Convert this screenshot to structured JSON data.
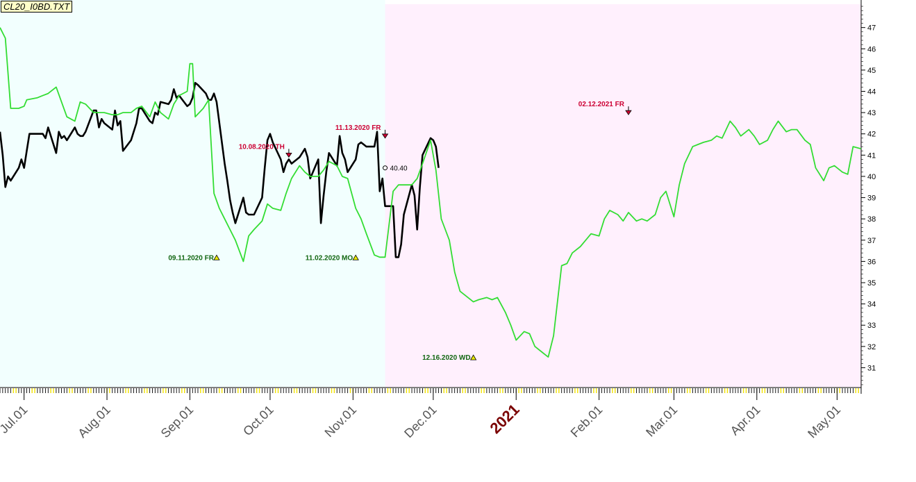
{
  "file_label": "CL20_I0BD.TXT",
  "colors": {
    "past_bg": "#f2fffe",
    "future_bg": "#fff0fd",
    "actual_line": "#000000",
    "forecast_line": "#33dd33",
    "high_marker": "#cc0033",
    "low_marker": "#116611",
    "year_label": "#7a0000"
  },
  "chart_data": {
    "type": "line",
    "x_axis": {
      "ticks": [
        "Jul.01",
        "Aug.01",
        "Sep.01",
        "Oct.01",
        "Nov.01",
        "Dec.01",
        "2021",
        "Feb.01",
        "Mar.01",
        "Apr.01",
        "May.01"
      ],
      "tick_dates": [
        "2020-07-01",
        "2020-08-01",
        "2020-09-01",
        "2020-10-01",
        "2020-11-01",
        "2020-12-01",
        "2021-01-01",
        "2021-02-01",
        "2021-03-01",
        "2021-04-01",
        "2021-05-01"
      ],
      "year_tick": "2021",
      "range": [
        "2020-06-22",
        "2021-05-10"
      ]
    },
    "y_axis": {
      "position": "right",
      "ticks": [
        31,
        32,
        33,
        34,
        35,
        36,
        37,
        38,
        39,
        40,
        41,
        42,
        43,
        44,
        45,
        46,
        47
      ],
      "range": [
        30.1,
        48.1
      ]
    },
    "split_date": "2020-11-13",
    "series": [
      {
        "key": "actual",
        "points": [
          [
            "2020-06-22",
            42.1
          ],
          [
            "2020-06-23",
            41.0
          ],
          [
            "2020-06-24",
            39.5
          ],
          [
            "2020-06-25",
            40.0
          ],
          [
            "2020-06-26",
            39.8
          ],
          [
            "2020-06-29",
            40.4
          ],
          [
            "2020-06-30",
            40.8
          ],
          [
            "2020-07-01",
            40.4
          ],
          [
            "2020-07-02",
            41.2
          ],
          [
            "2020-07-03",
            42.0
          ],
          [
            "2020-07-06",
            42.0
          ],
          [
            "2020-07-07",
            42.0
          ],
          [
            "2020-07-08",
            42.0
          ],
          [
            "2020-07-09",
            41.8
          ],
          [
            "2020-07-10",
            42.3
          ],
          [
            "2020-07-13",
            41.1
          ],
          [
            "2020-07-14",
            42.1
          ],
          [
            "2020-07-15",
            41.8
          ],
          [
            "2020-07-16",
            41.9
          ],
          [
            "2020-07-17",
            41.7
          ],
          [
            "2020-07-20",
            42.3
          ],
          [
            "2020-07-21",
            42.0
          ],
          [
            "2020-07-22",
            41.9
          ],
          [
            "2020-07-23",
            41.9
          ],
          [
            "2020-07-24",
            42.1
          ],
          [
            "2020-07-27",
            43.1
          ],
          [
            "2020-07-28",
            43.1
          ],
          [
            "2020-07-29",
            42.3
          ],
          [
            "2020-07-30",
            42.7
          ],
          [
            "2020-07-31",
            42.5
          ],
          [
            "2020-08-03",
            42.2
          ],
          [
            "2020-08-04",
            43.1
          ],
          [
            "2020-08-05",
            42.4
          ],
          [
            "2020-08-06",
            42.6
          ],
          [
            "2020-08-07",
            41.2
          ],
          [
            "2020-08-10",
            41.7
          ],
          [
            "2020-08-11",
            42.1
          ],
          [
            "2020-08-12",
            42.5
          ],
          [
            "2020-08-13",
            43.2
          ],
          [
            "2020-08-14",
            43.2
          ],
          [
            "2020-08-17",
            42.6
          ],
          [
            "2020-08-18",
            42.5
          ],
          [
            "2020-08-19",
            43.0
          ],
          [
            "2020-08-20",
            42.9
          ],
          [
            "2020-08-21",
            43.5
          ],
          [
            "2020-08-24",
            43.4
          ],
          [
            "2020-08-25",
            43.6
          ],
          [
            "2020-08-26",
            44.1
          ],
          [
            "2020-08-27",
            43.7
          ],
          [
            "2020-08-28",
            43.8
          ],
          [
            "2020-08-31",
            43.3
          ],
          [
            "2020-09-01",
            43.4
          ],
          [
            "2020-09-02",
            43.7
          ],
          [
            "2020-09-03",
            44.4
          ],
          [
            "2020-09-04",
            44.3
          ],
          [
            "2020-09-07",
            43.9
          ],
          [
            "2020-09-08",
            43.6
          ],
          [
            "2020-09-09",
            43.6
          ],
          [
            "2020-09-10",
            43.9
          ],
          [
            "2020-09-11",
            43.5
          ],
          [
            "2020-09-14",
            40.6
          ],
          [
            "2020-09-15",
            39.8
          ],
          [
            "2020-09-16",
            38.9
          ],
          [
            "2020-09-17",
            38.3
          ],
          [
            "2020-09-18",
            37.8
          ],
          [
            "2020-09-21",
            39.0
          ],
          [
            "2020-09-22",
            38.3
          ],
          [
            "2020-09-23",
            38.2
          ],
          [
            "2020-09-24",
            38.2
          ],
          [
            "2020-09-25",
            38.2
          ],
          [
            "2020-09-28",
            39.0
          ],
          [
            "2020-09-29",
            40.4
          ],
          [
            "2020-09-30",
            41.7
          ],
          [
            "2020-10-01",
            42.0
          ],
          [
            "2020-10-02",
            41.6
          ],
          [
            "2020-10-05",
            40.8
          ],
          [
            "2020-10-06",
            40.2
          ],
          [
            "2020-10-07",
            40.6
          ],
          [
            "2020-10-08",
            40.8
          ],
          [
            "2020-10-09",
            40.6
          ],
          [
            "2020-10-12",
            40.9
          ],
          [
            "2020-10-13",
            41.1
          ],
          [
            "2020-10-14",
            41.3
          ],
          [
            "2020-10-15",
            40.9
          ],
          [
            "2020-10-16",
            39.9
          ],
          [
            "2020-10-19",
            40.8
          ],
          [
            "2020-10-20",
            37.8
          ],
          [
            "2020-10-21",
            39.1
          ],
          [
            "2020-10-22",
            40.2
          ],
          [
            "2020-10-23",
            41.1
          ],
          [
            "2020-10-26",
            40.5
          ],
          [
            "2020-10-27",
            41.9
          ],
          [
            "2020-10-28",
            41.1
          ],
          [
            "2020-10-29",
            40.8
          ],
          [
            "2020-10-30",
            40.2
          ],
          [
            "2020-11-02",
            40.8
          ],
          [
            "2020-11-03",
            41.5
          ],
          [
            "2020-11-04",
            41.6
          ],
          [
            "2020-11-05",
            41.5
          ],
          [
            "2020-11-06",
            41.4
          ],
          [
            "2020-11-09",
            41.4
          ],
          [
            "2020-11-10",
            42.1
          ],
          [
            "2020-11-11",
            39.3
          ],
          [
            "2020-11-12",
            39.9
          ],
          [
            "2020-11-13",
            38.6
          ],
          [
            "2020-11-16",
            38.6
          ],
          [
            "2020-11-17",
            36.2
          ],
          [
            "2020-11-18",
            36.2
          ],
          [
            "2020-11-19",
            36.8
          ],
          [
            "2020-11-20",
            38.2
          ],
          [
            "2020-11-23",
            39.6
          ],
          [
            "2020-11-24",
            39.1
          ],
          [
            "2020-11-25",
            37.5
          ],
          [
            "2020-11-26",
            39.5
          ],
          [
            "2020-11-27",
            41.0
          ],
          [
            "2020-11-30",
            41.8
          ],
          [
            "2020-12-01",
            41.7
          ],
          [
            "2020-12-02",
            41.4
          ],
          [
            "2020-12-03",
            40.4
          ]
        ]
      },
      {
        "key": "forecast",
        "points": [
          [
            "2020-06-22",
            47.0
          ],
          [
            "2020-06-24",
            46.5
          ],
          [
            "2020-06-26",
            43.2
          ],
          [
            "2020-06-29",
            43.2
          ],
          [
            "2020-07-01",
            43.3
          ],
          [
            "2020-07-02",
            43.6
          ],
          [
            "2020-07-06",
            43.7
          ],
          [
            "2020-07-08",
            43.8
          ],
          [
            "2020-07-10",
            43.9
          ],
          [
            "2020-07-13",
            44.2
          ],
          [
            "2020-07-15",
            43.5
          ],
          [
            "2020-07-17",
            42.8
          ],
          [
            "2020-07-20",
            42.6
          ],
          [
            "2020-07-22",
            43.5
          ],
          [
            "2020-07-24",
            43.4
          ],
          [
            "2020-07-27",
            43.0
          ],
          [
            "2020-07-29",
            43.0
          ],
          [
            "2020-07-31",
            43.0
          ],
          [
            "2020-08-03",
            42.9
          ],
          [
            "2020-08-05",
            42.9
          ],
          [
            "2020-08-07",
            43.0
          ],
          [
            "2020-08-10",
            43.0
          ],
          [
            "2020-08-12",
            43.2
          ],
          [
            "2020-08-14",
            43.3
          ],
          [
            "2020-08-17",
            42.8
          ],
          [
            "2020-08-19",
            43.5
          ],
          [
            "2020-08-21",
            43.0
          ],
          [
            "2020-08-24",
            42.7
          ],
          [
            "2020-08-26",
            43.4
          ],
          [
            "2020-08-28",
            43.8
          ],
          [
            "2020-08-31",
            44.0
          ],
          [
            "2020-09-01",
            45.3
          ],
          [
            "2020-09-02",
            45.3
          ],
          [
            "2020-09-03",
            42.8
          ],
          [
            "2020-09-06",
            43.2
          ],
          [
            "2020-09-08",
            43.6
          ],
          [
            "2020-09-10",
            39.2
          ],
          [
            "2020-09-12",
            38.5
          ],
          [
            "2020-09-14",
            38.0
          ],
          [
            "2020-09-16",
            37.5
          ],
          [
            "2020-09-18",
            37.0
          ],
          [
            "2020-09-21",
            36.0
          ],
          [
            "2020-09-23",
            37.2
          ],
          [
            "2020-09-25",
            37.5
          ],
          [
            "2020-09-28",
            37.9
          ],
          [
            "2020-09-30",
            38.7
          ],
          [
            "2020-10-02",
            38.5
          ],
          [
            "2020-10-05",
            38.4
          ],
          [
            "2020-10-07",
            39.2
          ],
          [
            "2020-10-09",
            39.9
          ],
          [
            "2020-10-12",
            40.5
          ],
          [
            "2020-10-14",
            40.2
          ],
          [
            "2020-10-16",
            40.0
          ],
          [
            "2020-10-19",
            40.0
          ],
          [
            "2020-10-21",
            40.3
          ],
          [
            "2020-10-23",
            40.7
          ],
          [
            "2020-10-26",
            40.5
          ],
          [
            "2020-10-28",
            40.0
          ],
          [
            "2020-10-30",
            39.9
          ],
          [
            "2020-11-02",
            38.5
          ],
          [
            "2020-11-04",
            38.0
          ],
          [
            "2020-11-06",
            37.3
          ],
          [
            "2020-11-09",
            36.3
          ],
          [
            "2020-11-11",
            36.2
          ],
          [
            "2020-11-13",
            36.2
          ],
          [
            "2020-11-16",
            39.3
          ],
          [
            "2020-11-18",
            39.6
          ],
          [
            "2020-11-20",
            39.6
          ],
          [
            "2020-11-23",
            39.6
          ],
          [
            "2020-11-25",
            39.9
          ],
          [
            "2020-11-27",
            40.6
          ],
          [
            "2020-11-30",
            41.7
          ],
          [
            "2020-12-02",
            40.3
          ],
          [
            "2020-12-04",
            38.0
          ],
          [
            "2020-12-07",
            37.0
          ],
          [
            "2020-12-09",
            35.5
          ],
          [
            "2020-12-11",
            34.6
          ],
          [
            "2020-12-14",
            34.3
          ],
          [
            "2020-12-16",
            34.1
          ],
          [
            "2020-12-18",
            34.2
          ],
          [
            "2020-12-21",
            34.3
          ],
          [
            "2020-12-23",
            34.2
          ],
          [
            "2020-12-25",
            34.3
          ],
          [
            "2020-12-28",
            33.6
          ],
          [
            "2020-12-30",
            33.0
          ],
          [
            "2021-01-01",
            32.3
          ],
          [
            "2021-01-04",
            32.7
          ],
          [
            "2021-01-06",
            32.6
          ],
          [
            "2021-01-08",
            32.0
          ],
          [
            "2021-01-11",
            31.7
          ],
          [
            "2021-01-13",
            31.5
          ],
          [
            "2021-01-15",
            32.5
          ],
          [
            "2021-01-18",
            35.8
          ],
          [
            "2021-01-20",
            35.9
          ],
          [
            "2021-01-22",
            36.4
          ],
          [
            "2021-01-25",
            36.7
          ],
          [
            "2021-01-27",
            37.0
          ],
          [
            "2021-01-29",
            37.3
          ],
          [
            "2021-02-01",
            37.2
          ],
          [
            "2021-02-03",
            38.0
          ],
          [
            "2021-02-05",
            38.4
          ],
          [
            "2021-02-08",
            38.2
          ],
          [
            "2021-02-10",
            37.9
          ],
          [
            "2021-02-12",
            38.3
          ],
          [
            "2021-02-15",
            37.9
          ],
          [
            "2021-02-17",
            38.0
          ],
          [
            "2021-02-19",
            37.9
          ],
          [
            "2021-02-22",
            38.2
          ],
          [
            "2021-02-24",
            39.0
          ],
          [
            "2021-02-26",
            39.3
          ],
          [
            "2021-03-01",
            38.1
          ],
          [
            "2021-03-03",
            39.6
          ],
          [
            "2021-03-05",
            40.6
          ],
          [
            "2021-03-08",
            41.4
          ],
          [
            "2021-03-10",
            41.5
          ],
          [
            "2021-03-12",
            41.6
          ],
          [
            "2021-03-15",
            41.7
          ],
          [
            "2021-03-17",
            41.9
          ],
          [
            "2021-03-19",
            41.8
          ],
          [
            "2021-03-22",
            42.6
          ],
          [
            "2021-03-24",
            42.3
          ],
          [
            "2021-03-26",
            41.9
          ],
          [
            "2021-03-29",
            42.2
          ],
          [
            "2021-03-31",
            41.9
          ],
          [
            "2021-04-02",
            41.5
          ],
          [
            "2021-04-05",
            41.7
          ],
          [
            "2021-04-07",
            42.2
          ],
          [
            "2021-04-09",
            42.6
          ],
          [
            "2021-04-12",
            42.1
          ],
          [
            "2021-04-14",
            42.2
          ],
          [
            "2021-04-16",
            42.2
          ],
          [
            "2021-04-19",
            41.7
          ],
          [
            "2021-04-21",
            41.5
          ],
          [
            "2021-04-23",
            40.4
          ],
          [
            "2021-04-26",
            39.8
          ],
          [
            "2021-04-28",
            40.4
          ],
          [
            "2021-04-30",
            40.5
          ],
          [
            "2021-05-03",
            40.2
          ],
          [
            "2021-05-05",
            40.1
          ],
          [
            "2021-05-07",
            41.4
          ],
          [
            "2021-05-10",
            41.3
          ]
        ]
      }
    ],
    "annotations": [
      {
        "kind": "high",
        "text": "10.08.2020 TH",
        "date": "2020-10-08",
        "value": 40.9
      },
      {
        "kind": "high",
        "text": "11.13.2020 FR",
        "date": "2020-11-13",
        "value": 41.8
      },
      {
        "kind": "high",
        "text": "02.12.2021 FR",
        "date": "2021-02-12",
        "value": 42.9
      },
      {
        "kind": "low",
        "text": "09.11.2020 FR",
        "date": "2020-09-11",
        "value": 36.2
      },
      {
        "kind": "low",
        "text": "11.02.2020 MO",
        "date": "2020-11-02",
        "value": 36.2
      },
      {
        "kind": "low",
        "text": "12.16.2020 WD",
        "date": "2020-12-16",
        "value": 31.5
      }
    ],
    "last_value": {
      "text": "40.40",
      "date": "2020-11-13",
      "value": 40.4
    }
  }
}
